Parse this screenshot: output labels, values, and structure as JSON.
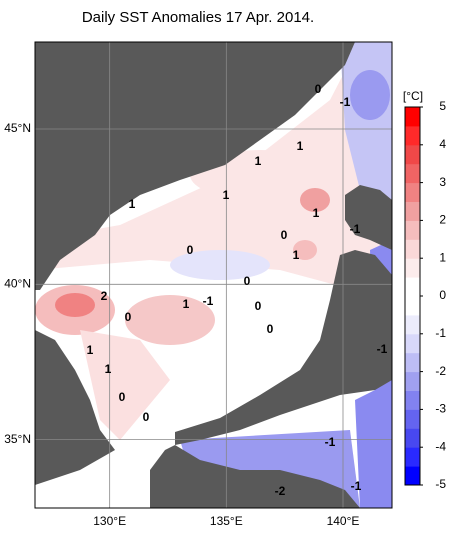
{
  "title": "Daily SST Anomalies 17 Apr. 2014.",
  "map": {
    "lonlim": [
      126.8,
      142.1
    ],
    "latlim": [
      32.8,
      47.8
    ],
    "lat_ticks": [
      {
        "value": 45,
        "label": "45°N"
      },
      {
        "value": 40,
        "label": "40°N"
      },
      {
        "value": 35,
        "label": "35°N"
      }
    ],
    "lon_ticks": [
      {
        "value": 130,
        "label": "130°E"
      },
      {
        "value": 135,
        "label": "135°E"
      },
      {
        "value": 140,
        "label": "140°E"
      }
    ],
    "contour_labels": [
      "0",
      "-1",
      "1",
      "1",
      "1",
      "1",
      "1",
      "0",
      "0",
      "1",
      "-1",
      "2",
      "1",
      "-1",
      "0",
      "0",
      "0",
      "1",
      "1",
      "0",
      "0",
      "0",
      "-1",
      "-1",
      "-2",
      "-1"
    ]
  },
  "colorbar": {
    "label": "[°C]",
    "lim": [
      -5,
      5
    ],
    "ticks": [
      5,
      4,
      3,
      2,
      1,
      0,
      -1,
      -2,
      -3,
      -4,
      -5
    ],
    "colors": [
      "#0000ff",
      "#2a2aff",
      "#4848f0",
      "#6464f0",
      "#8282f0",
      "#a0a0f0",
      "#bdbdf5",
      "#d8d8fa",
      "#ececfc",
      "#ffffff",
      "#ffffff",
      "#fcecec",
      "#fad8d8",
      "#f5bdbd",
      "#f0a0a0",
      "#f08282",
      "#f06464",
      "#f04848",
      "#ff2a2a",
      "#ff0000"
    ]
  }
}
